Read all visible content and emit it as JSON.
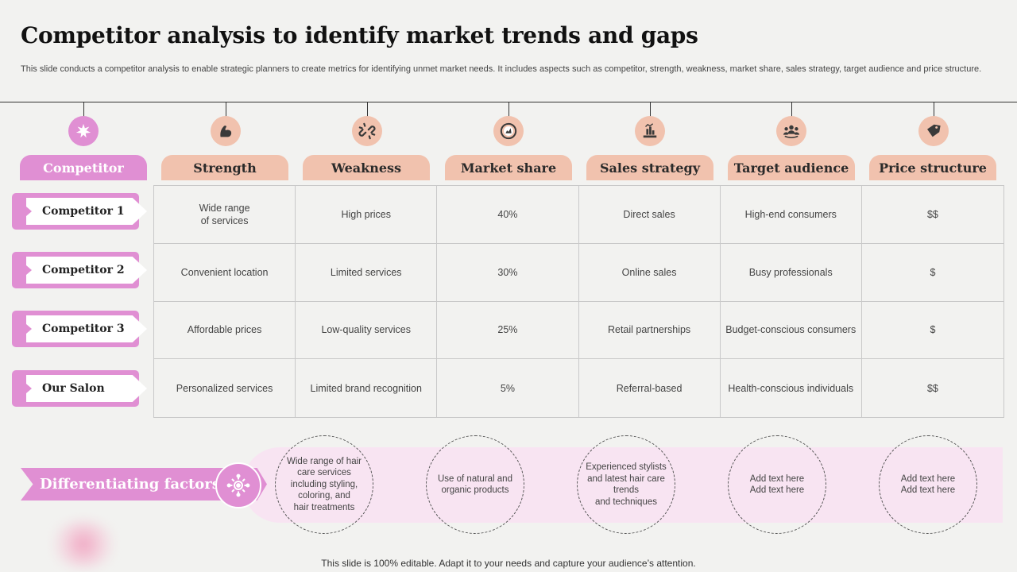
{
  "slide": {
    "title": "Competitor analysis to identify market trends and gaps",
    "subtitle": "This slide conducts a competitor analysis to enable strategic planners to create metrics for identifying unmet market needs. It includes aspects such as competitor, strength, weakness, market share, sales strategy, target audience and price structure.",
    "footer": "This slide is 100% editable. Adapt it to your needs and capture your audience’s attention."
  },
  "colors": {
    "accent_pink": "#e08fd3",
    "accent_peach": "#f1c2ae",
    "light_pink_band": "#f8e4f2"
  },
  "columns": [
    {
      "label": "Competitor",
      "icon": "leaf-icon"
    },
    {
      "label": "Strength",
      "icon": "flexed-arm-icon"
    },
    {
      "label": "Weakness",
      "icon": "broken-link-icon"
    },
    {
      "label": "Market share",
      "icon": "chart-gauge-icon"
    },
    {
      "label": "Sales strategy",
      "icon": "hand-chart-icon"
    },
    {
      "label": "Target audience",
      "icon": "audience-group-icon"
    },
    {
      "label": "Price structure",
      "icon": "price-tag-icon"
    }
  ],
  "rows": [
    {
      "name": "Competitor 1",
      "cells": [
        "Wide range\nof services",
        "High prices",
        "40%",
        "Direct sales",
        "High-end consumers",
        "$$"
      ]
    },
    {
      "name": "Competitor 2",
      "cells": [
        "Convenient  location",
        "Limited services",
        "30%",
        "Online sales",
        "Busy professionals",
        "$"
      ]
    },
    {
      "name": "Competitor 3",
      "cells": [
        "Affordable  prices",
        "Low-quality  services",
        "25%",
        "Retail partnerships",
        "Budget-conscious consumers",
        "$"
      ]
    },
    {
      "name": "Our Salon",
      "cells": [
        "Personalized services",
        "Limited brand recognition",
        "5%",
        "Referral-based",
        "Health-conscious individuals",
        "$$"
      ]
    }
  ],
  "differentiating": {
    "label": "Differentiating factors",
    "icon": "gear-network-icon",
    "items": [
      "Wide range of hair\ncare services\nincluding styling,\ncoloring, and\nhair treatments",
      "Use of natural and\norganic products",
      "Experienced stylists\nand latest hair care\ntrends\nand techniques",
      "Add text here\nAdd text here",
      "Add text here\nAdd text here"
    ]
  }
}
